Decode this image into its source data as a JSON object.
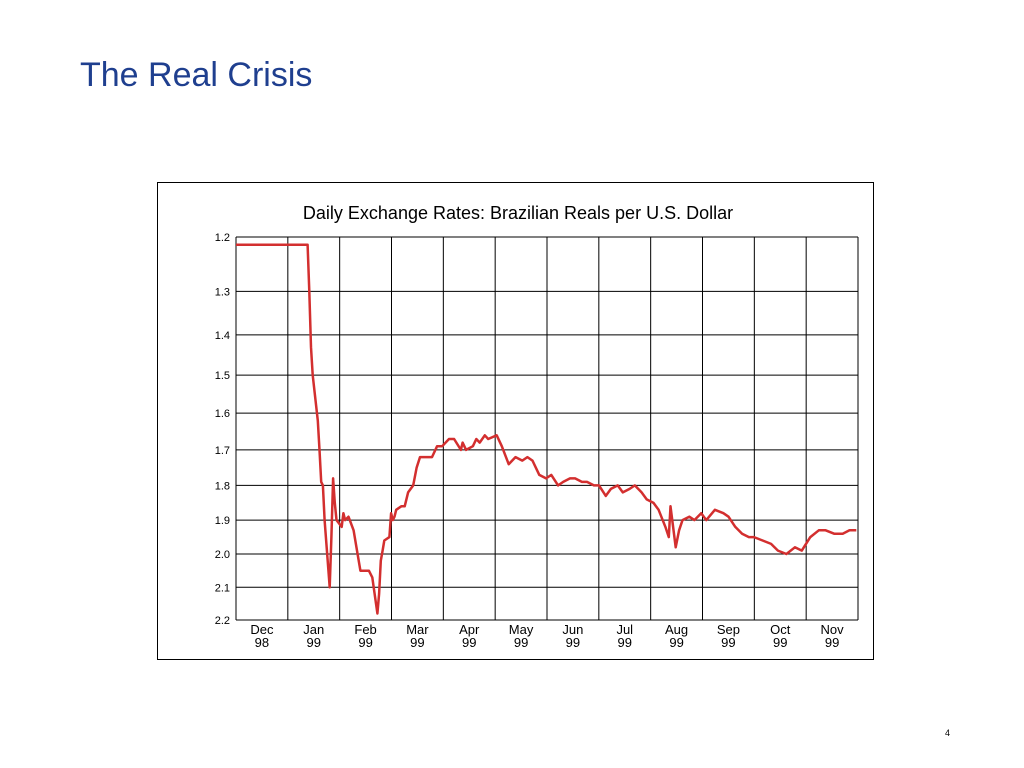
{
  "slide": {
    "title": "The Real Crisis",
    "page_number": "4"
  },
  "colors": {
    "title": "#1f3f8f",
    "line": "#d32f2f",
    "grid": "#000000",
    "background": "#ffffff"
  },
  "chart_data": {
    "type": "line",
    "title": "Daily Exchange Rates: Brazilian Reals per U.S. Dollar",
    "xlabel": "",
    "ylabel": "",
    "y_inverted": true,
    "ylim": [
      1.2,
      2.2
    ],
    "y_ticks": [
      {
        "value": 1.2,
        "label": "1.2"
      },
      {
        "value": 1.3,
        "label": "1.3"
      },
      {
        "value": 1.4,
        "label": "1.4"
      },
      {
        "value": 1.5,
        "label": "1.5"
      },
      {
        "value": 1.6,
        "label": "1.6"
      },
      {
        "value": 1.7,
        "label": "1.7"
      },
      {
        "value": 1.8,
        "label": "1.8"
      },
      {
        "value": 1.9,
        "label": "1.9"
      },
      {
        "value": 2.0,
        "label": "2.0"
      },
      {
        "value": 2.1,
        "label": "2.1"
      },
      {
        "value": 2.2,
        "label": "2.2"
      }
    ],
    "x_ticks": [
      {
        "month": "Dec",
        "year": "98"
      },
      {
        "month": "Jan",
        "year": "99"
      },
      {
        "month": "Feb",
        "year": "99"
      },
      {
        "month": "Mar",
        "year": "99"
      },
      {
        "month": "Apr",
        "year": "99"
      },
      {
        "month": "May",
        "year": "99"
      },
      {
        "month": "Jun",
        "year": "99"
      },
      {
        "month": "Jul",
        "year": "99"
      },
      {
        "month": "Aug",
        "year": "99"
      },
      {
        "month": "Sep",
        "year": "99"
      },
      {
        "month": "Oct",
        "year": "99"
      },
      {
        "month": "Nov",
        "year": "99"
      }
    ],
    "grid": true,
    "legend": "none",
    "series": [
      {
        "x": [
          "1998-12-01",
          "1998-12-10",
          "1998-12-20",
          "1998-12-31",
          "1999-01-07",
          "1999-01-12",
          "1999-01-13",
          "1999-01-14",
          "1999-01-15",
          "1999-01-18",
          "1999-01-19",
          "1999-01-20",
          "1999-01-21",
          "1999-01-22",
          "1999-01-25",
          "1999-01-26",
          "1999-01-27",
          "1999-01-28",
          "1999-01-29",
          "1999-02-01",
          "1999-02-02",
          "1999-02-03",
          "1999-02-05",
          "1999-02-08",
          "1999-02-10",
          "1999-02-12",
          "1999-02-17",
          "1999-02-19",
          "1999-02-22",
          "1999-02-23",
          "1999-02-24",
          "1999-02-25",
          "1999-02-26",
          "1999-03-01",
          "1999-03-02",
          "1999-03-03",
          "1999-03-04",
          "1999-03-05",
          "1999-03-08",
          "1999-03-10",
          "1999-03-12",
          "1999-03-15",
          "1999-03-17",
          "1999-03-19",
          "1999-03-23",
          "1999-03-26",
          "1999-03-29",
          "1999-04-01",
          "1999-04-05",
          "1999-04-08",
          "1999-04-12",
          "1999-04-13",
          "1999-04-15",
          "1999-04-19",
          "1999-04-21",
          "1999-04-23",
          "1999-04-26",
          "1999-04-28",
          "1999-05-03",
          "1999-05-06",
          "1999-05-10",
          "1999-05-14",
          "1999-05-18",
          "1999-05-21",
          "1999-05-24",
          "1999-05-26",
          "1999-05-28",
          "1999-06-01",
          "1999-06-04",
          "1999-06-08",
          "1999-06-11",
          "1999-06-15",
          "1999-06-18",
          "1999-06-22",
          "1999-06-25",
          "1999-06-29",
          "1999-07-02",
          "1999-07-06",
          "1999-07-09",
          "1999-07-13",
          "1999-07-16",
          "1999-07-20",
          "1999-07-23",
          "1999-07-27",
          "1999-07-30",
          "1999-08-03",
          "1999-08-06",
          "1999-08-10",
          "1999-08-12",
          "1999-08-13",
          "1999-08-16",
          "1999-08-18",
          "1999-08-20",
          "1999-08-24",
          "1999-08-27",
          "1999-08-31",
          "1999-09-03",
          "1999-09-08",
          "1999-09-13",
          "1999-09-16",
          "1999-09-20",
          "1999-09-24",
          "1999-09-28",
          "1999-10-01",
          "1999-10-06",
          "1999-10-11",
          "1999-10-15",
          "1999-10-20",
          "1999-10-25",
          "1999-10-29",
          "1999-11-03",
          "1999-11-08",
          "1999-11-12",
          "1999-11-17",
          "1999-11-22",
          "1999-11-26",
          "1999-11-30"
        ],
        "y": [
          1.21,
          1.21,
          1.21,
          1.21,
          1.21,
          1.21,
          1.3,
          1.43,
          1.5,
          1.62,
          1.7,
          1.79,
          1.8,
          1.9,
          2.1,
          1.95,
          1.78,
          1.85,
          1.9,
          1.92,
          1.88,
          1.9,
          1.89,
          1.93,
          1.99,
          2.05,
          2.05,
          2.07,
          2.18,
          2.12,
          2.02,
          1.99,
          1.96,
          1.95,
          1.88,
          1.9,
          1.89,
          1.87,
          1.86,
          1.86,
          1.82,
          1.8,
          1.75,
          1.72,
          1.72,
          1.72,
          1.69,
          1.69,
          1.67,
          1.67,
          1.7,
          1.68,
          1.7,
          1.69,
          1.67,
          1.68,
          1.66,
          1.67,
          1.66,
          1.69,
          1.74,
          1.72,
          1.73,
          1.72,
          1.73,
          1.75,
          1.77,
          1.78,
          1.77,
          1.8,
          1.79,
          1.78,
          1.78,
          1.79,
          1.79,
          1.8,
          1.8,
          1.83,
          1.81,
          1.8,
          1.82,
          1.81,
          1.8,
          1.82,
          1.84,
          1.85,
          1.87,
          1.92,
          1.95,
          1.86,
          1.98,
          1.93,
          1.9,
          1.89,
          1.9,
          1.88,
          1.9,
          1.87,
          1.88,
          1.89,
          1.92,
          1.94,
          1.95,
          1.95,
          1.96,
          1.97,
          1.99,
          2.0,
          1.98,
          1.99,
          1.95,
          1.93,
          1.93,
          1.94,
          1.94,
          1.93,
          1.93
        ]
      }
    ]
  }
}
